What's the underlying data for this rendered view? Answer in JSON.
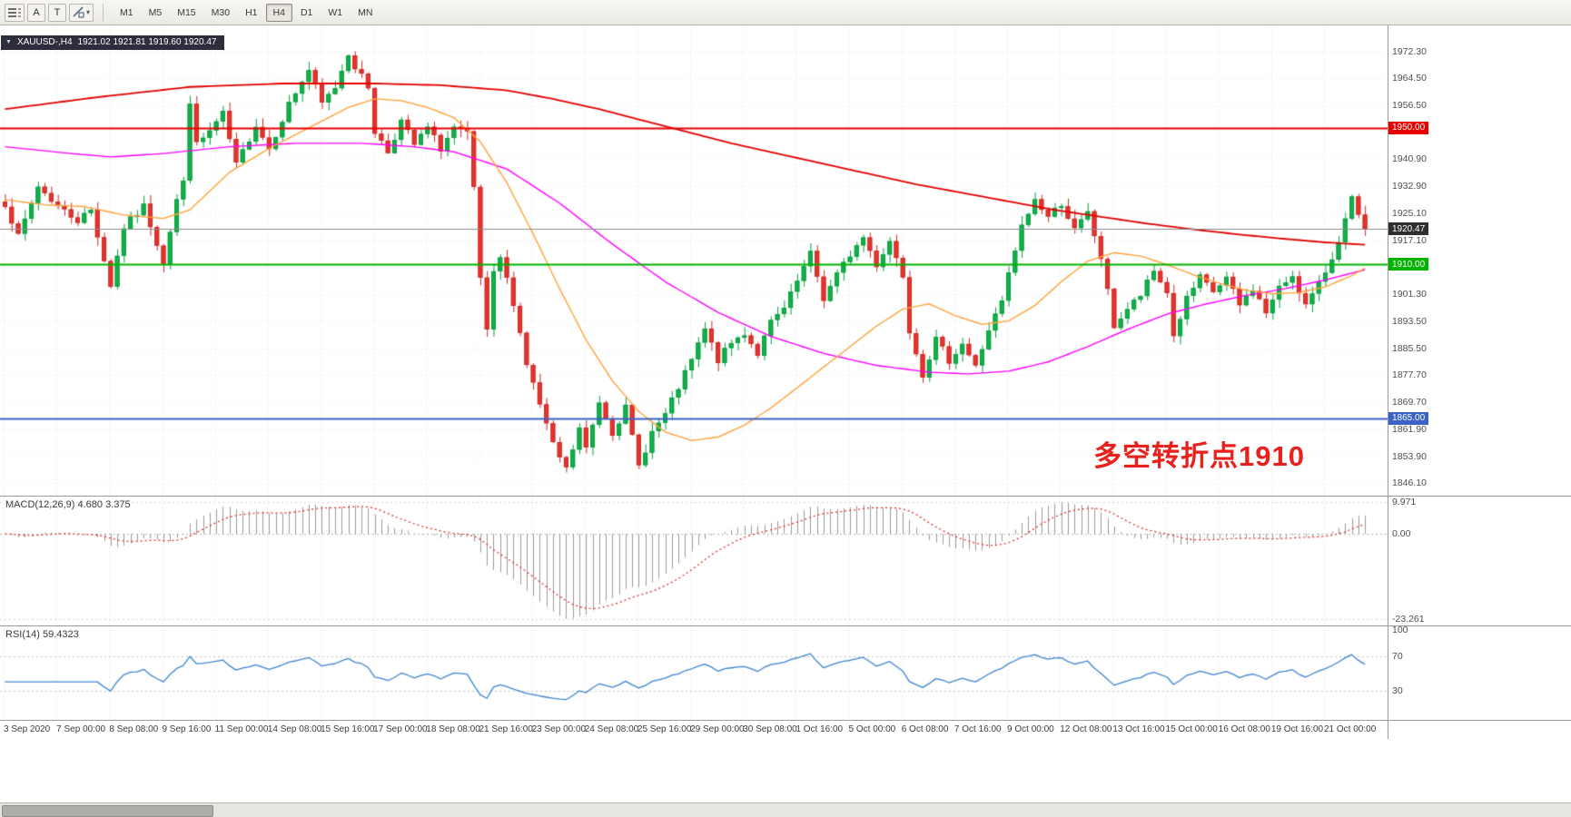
{
  "toolbar": {
    "tool_a": "A",
    "tool_t": "T",
    "timeframes": [
      "M1",
      "M5",
      "M15",
      "M30",
      "H1",
      "H4",
      "D1",
      "W1",
      "MN"
    ],
    "active_timeframe": "H4"
  },
  "chart_header": {
    "symbol_timeframe": "XAUUSD-,H4",
    "ohlc_text": "1921.02 1921.81 1919.60 1920.47"
  },
  "annotation": {
    "text": "多空转折点1910",
    "color": "#e8211d"
  },
  "price_axis": {
    "labels": [
      "1972.30",
      "1964.50",
      "1956.50",
      "1940.90",
      "1932.90",
      "1925.10",
      "1917.10",
      "1901.30",
      "1893.50",
      "1885.50",
      "1877.70",
      "1869.70",
      "1861.90",
      "1853.90",
      "1846.10"
    ],
    "tags": [
      {
        "label": "1950.00",
        "price": 1950.0,
        "color": "#e60000"
      },
      {
        "label": "1920.47",
        "price": 1920.47,
        "color": "#2f2f2f"
      },
      {
        "label": "1910.00",
        "price": 1910.0,
        "color": "#00b400"
      },
      {
        "label": "1865.00",
        "price": 1865.0,
        "color": "#3a62c8"
      }
    ]
  },
  "time_axis": {
    "labels": [
      "3 Sep 2020",
      "7 Sep 00:00",
      "8 Sep 08:00",
      "9 Sep 16:00",
      "11 Sep 00:00",
      "14 Sep 08:00",
      "15 Sep 16:00",
      "17 Sep 00:00",
      "18 Sep 08:00",
      "21 Sep 16:00",
      "23 Sep 00:00",
      "24 Sep 08:00",
      "25 Sep 16:00",
      "29 Sep 00:00",
      "30 Sep 08:00",
      "1 Oct 16:00",
      "5 Oct 00:00",
      "6 Oct 08:00",
      "7 Oct 16:00",
      "9 Oct 00:00",
      "12 Oct 08:00",
      "13 Oct 16:00",
      "15 Oct 00:00",
      "16 Oct 08:00",
      "19 Oct 16:00",
      "21 Oct 00:00"
    ]
  },
  "macd": {
    "name": "MACD(12,26,9)",
    "values": "4.680 3.375",
    "axis": [
      "9.971",
      "0.00",
      "-23.261"
    ]
  },
  "rsi": {
    "name": "RSI(14)",
    "value": "59.4323",
    "axis": [
      "100",
      "70",
      "30"
    ]
  },
  "chart_data": {
    "type": "candlestick",
    "symbol": "XAUUSD-",
    "timeframe": "H4",
    "title": "XAUUSD-,H4",
    "last_ohlc": {
      "open": 1921.02,
      "high": 1921.81,
      "low": 1919.6,
      "close": 1920.47
    },
    "x_range": [
      "3 Sep 2020",
      "21 Oct 2020"
    ],
    "y_range": [
      1846.1,
      1972.3
    ],
    "up_color": "#12b04a",
    "down_color": "#e5342e",
    "close_path": [
      [
        0,
        1928
      ],
      [
        2,
        1918
      ],
      [
        5,
        1933
      ],
      [
        8,
        1927
      ],
      [
        11,
        1923
      ],
      [
        13,
        1926
      ],
      [
        16,
        1904
      ],
      [
        18,
        1921
      ],
      [
        21,
        1927
      ],
      [
        24,
        1911
      ],
      [
        26,
        1929
      ],
      [
        27,
        1934
      ],
      [
        28,
        1958
      ],
      [
        29,
        1945
      ],
      [
        31,
        1949
      ],
      [
        33,
        1954
      ],
      [
        35,
        1939
      ],
      [
        38,
        1951
      ],
      [
        40,
        1944
      ],
      [
        43,
        1957
      ],
      [
        46,
        1967
      ],
      [
        48,
        1957
      ],
      [
        50,
        1962
      ],
      [
        52,
        1972
      ],
      [
        53,
        1968
      ],
      [
        55,
        1962
      ],
      [
        56,
        1949
      ],
      [
        58,
        1943
      ],
      [
        60,
        1952
      ],
      [
        62,
        1945
      ],
      [
        64,
        1950
      ],
      [
        66,
        1944
      ],
      [
        68,
        1950
      ],
      [
        70,
        1948
      ],
      [
        71,
        1932
      ],
      [
        72,
        1906
      ],
      [
        73,
        1890
      ],
      [
        74,
        1907
      ],
      [
        75,
        1912
      ],
      [
        77,
        1899
      ],
      [
        79,
        1881
      ],
      [
        81,
        1869
      ],
      [
        83,
        1857
      ],
      [
        85,
        1850
      ],
      [
        87,
        1862
      ],
      [
        88,
        1856
      ],
      [
        90,
        1870
      ],
      [
        92,
        1861
      ],
      [
        94,
        1868
      ],
      [
        96,
        1851
      ],
      [
        98,
        1861
      ],
      [
        100,
        1866
      ],
      [
        102,
        1874
      ],
      [
        104,
        1882
      ],
      [
        106,
        1891
      ],
      [
        108,
        1882
      ],
      [
        110,
        1887
      ],
      [
        112,
        1890
      ],
      [
        114,
        1884
      ],
      [
        116,
        1893
      ],
      [
        118,
        1897
      ],
      [
        120,
        1905
      ],
      [
        122,
        1913
      ],
      [
        124,
        1900
      ],
      [
        126,
        1907
      ],
      [
        128,
        1913
      ],
      [
        130,
        1918
      ],
      [
        132,
        1910
      ],
      [
        134,
        1917
      ],
      [
        136,
        1907
      ],
      [
        137,
        1891
      ],
      [
        139,
        1878
      ],
      [
        141,
        1888
      ],
      [
        143,
        1882
      ],
      [
        145,
        1887
      ],
      [
        147,
        1880
      ],
      [
        149,
        1891
      ],
      [
        151,
        1899
      ],
      [
        152,
        1907
      ],
      [
        154,
        1921
      ],
      [
        156,
        1929
      ],
      [
        158,
        1924
      ],
      [
        160,
        1928
      ],
      [
        162,
        1920
      ],
      [
        164,
        1925
      ],
      [
        166,
        1912
      ],
      [
        168,
        1892
      ],
      [
        170,
        1897
      ],
      [
        172,
        1901
      ],
      [
        174,
        1908
      ],
      [
        176,
        1902
      ],
      [
        177,
        1889
      ],
      [
        179,
        1900
      ],
      [
        181,
        1906
      ],
      [
        183,
        1902
      ],
      [
        185,
        1906
      ],
      [
        187,
        1898
      ],
      [
        189,
        1903
      ],
      [
        191,
        1896
      ],
      [
        193,
        1903
      ],
      [
        195,
        1907
      ],
      [
        197,
        1898
      ],
      [
        199,
        1904
      ],
      [
        201,
        1912
      ],
      [
        203,
        1923
      ],
      [
        204,
        1929
      ],
      [
        205,
        1924
      ],
      [
        206,
        1920.47
      ]
    ],
    "moving_averages": [
      {
        "name": "ma-slow",
        "color": "#e60000",
        "width": 1.8,
        "points": [
          [
            0,
            1955.5
          ],
          [
            14,
            1959
          ],
          [
            28,
            1962
          ],
          [
            42,
            1963
          ],
          [
            56,
            1963
          ],
          [
            66,
            1962.5
          ],
          [
            76,
            1961
          ],
          [
            83,
            1958.5
          ],
          [
            90,
            1955.5
          ],
          [
            96,
            1952.5
          ],
          [
            103,
            1949
          ],
          [
            110,
            1945.5
          ],
          [
            117,
            1942.5
          ],
          [
            124,
            1939.5
          ],
          [
            131,
            1936.5
          ],
          [
            138,
            1933.5
          ],
          [
            145,
            1931
          ],
          [
            152,
            1928.5
          ],
          [
            159,
            1926
          ],
          [
            166,
            1924
          ],
          [
            173,
            1922
          ],
          [
            180,
            1920.3
          ],
          [
            187,
            1918.8
          ],
          [
            194,
            1917.5
          ],
          [
            200,
            1916.5
          ],
          [
            206,
            1915.8
          ]
        ]
      },
      {
        "name": "ma-medium",
        "color": "#ff00ff",
        "width": 1.4,
        "points": [
          [
            0,
            1944.5
          ],
          [
            10,
            1942.5
          ],
          [
            16,
            1941.5
          ],
          [
            24,
            1942.5
          ],
          [
            34,
            1944.5
          ],
          [
            44,
            1945.5
          ],
          [
            54,
            1945.5
          ],
          [
            62,
            1944.5
          ],
          [
            68,
            1943
          ],
          [
            76,
            1938
          ],
          [
            84,
            1928
          ],
          [
            92,
            1916
          ],
          [
            100,
            1905
          ],
          [
            108,
            1896
          ],
          [
            116,
            1889
          ],
          [
            124,
            1884
          ],
          [
            132,
            1880.5
          ],
          [
            140,
            1878.5
          ],
          [
            146,
            1878
          ],
          [
            152,
            1878.8
          ],
          [
            158,
            1881.5
          ],
          [
            164,
            1886
          ],
          [
            170,
            1891
          ],
          [
            176,
            1895.5
          ],
          [
            182,
            1898.5
          ],
          [
            188,
            1901
          ],
          [
            194,
            1903
          ],
          [
            200,
            1905.5
          ],
          [
            206,
            1908.5
          ]
        ]
      },
      {
        "name": "ma-fast",
        "color": "#ffa33c",
        "width": 1.4,
        "points": [
          [
            0,
            1929
          ],
          [
            6,
            1927.5
          ],
          [
            12,
            1927
          ],
          [
            18,
            1924.5
          ],
          [
            24,
            1923.5
          ],
          [
            28,
            1926
          ],
          [
            34,
            1937
          ],
          [
            40,
            1944
          ],
          [
            46,
            1950
          ],
          [
            52,
            1956
          ],
          [
            56,
            1958.5
          ],
          [
            60,
            1958
          ],
          [
            64,
            1956
          ],
          [
            68,
            1953
          ],
          [
            72,
            1946
          ],
          [
            76,
            1934
          ],
          [
            80,
            1919
          ],
          [
            84,
            1903
          ],
          [
            88,
            1888
          ],
          [
            92,
            1876
          ],
          [
            96,
            1867
          ],
          [
            100,
            1861
          ],
          [
            104,
            1858.5
          ],
          [
            108,
            1859.5
          ],
          [
            112,
            1863
          ],
          [
            116,
            1868
          ],
          [
            120,
            1874
          ],
          [
            124,
            1880
          ],
          [
            128,
            1886
          ],
          [
            132,
            1892
          ],
          [
            136,
            1897
          ],
          [
            140,
            1898.5
          ],
          [
            144,
            1895
          ],
          [
            148,
            1892.5
          ],
          [
            152,
            1893.5
          ],
          [
            156,
            1898
          ],
          [
            160,
            1905
          ],
          [
            164,
            1911
          ],
          [
            168,
            1913.5
          ],
          [
            172,
            1912.5
          ],
          [
            176,
            1910
          ],
          [
            180,
            1907
          ],
          [
            184,
            1904.5
          ],
          [
            188,
            1902.5
          ],
          [
            192,
            1901.5
          ],
          [
            196,
            1901.8
          ],
          [
            200,
            1903.5
          ],
          [
            204,
            1906.8
          ],
          [
            206,
            1909
          ]
        ]
      }
    ],
    "horizontal_levels": [
      {
        "price": 1950.0,
        "color": "#e60000",
        "width": 2,
        "style": "solid",
        "label": "1950.00"
      },
      {
        "price": 1920.47,
        "color": "#8c8c8c",
        "width": 1,
        "style": "solid",
        "label": "1920.47",
        "role": "bid-line"
      },
      {
        "price": 1910.0,
        "color": "#00b400",
        "width": 2,
        "style": "solid",
        "label": "1910.00"
      },
      {
        "price": 1865.0,
        "color": "#3a62c8",
        "width": 2,
        "style": "solid",
        "label": "1865.00"
      }
    ],
    "indicators": [
      {
        "name": "MACD",
        "params": [
          12,
          26,
          9
        ],
        "display_values": [
          4.68,
          3.375
        ],
        "axis_values": [
          9.971,
          0.0,
          -23.261
        ],
        "histogram_color": "#9b9b9b",
        "signal_color": "#e03030"
      },
      {
        "name": "RSI",
        "params": [
          14
        ],
        "display_value": 59.4323,
        "axis_values": [
          100,
          70,
          30
        ],
        "levels": [
          70,
          30
        ],
        "line_color": "#3f86d2"
      }
    ]
  }
}
